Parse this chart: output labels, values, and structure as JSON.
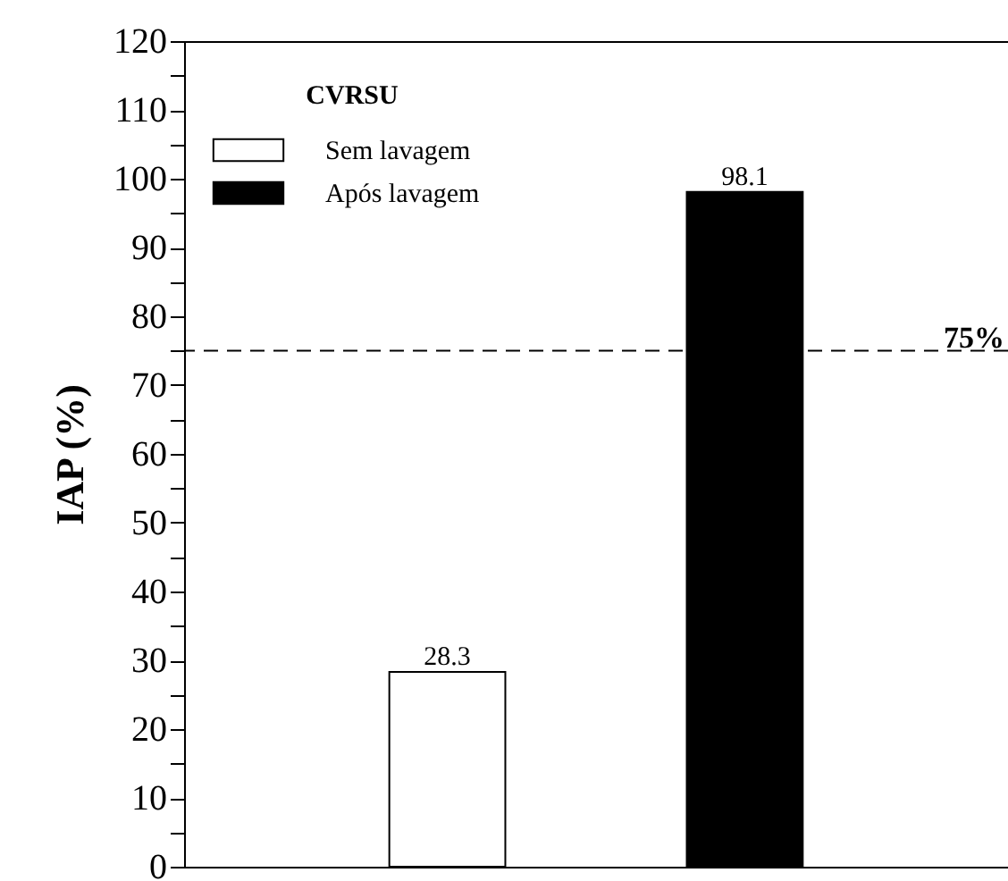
{
  "chart_data": {
    "type": "bar",
    "ylabel": "IAP (%)",
    "legend_title": "CVRSU",
    "categories": [
      null,
      null
    ],
    "series": [
      {
        "name": "Sem lavagem",
        "color": "#ffffff",
        "values": [
          28.3,
          null
        ]
      },
      {
        "name": "Após lavagem",
        "color": "#000000",
        "values": [
          null,
          98.1
        ]
      }
    ],
    "ylim": [
      0,
      120
    ],
    "yticks": [
      0,
      {
        "value": 5,
        "label": null
      },
      10,
      {
        "value": 15,
        "label": null
      },
      20,
      {
        "value": 25,
        "label": null
      },
      30,
      {
        "value": 35,
        "label": null
      },
      40,
      {
        "value": 45,
        "label": null
      },
      50,
      {
        "value": 55,
        "label": null
      },
      60,
      {
        "value": 65,
        "label": null
      },
      70,
      {
        "value": 75,
        "label": null
      },
      80,
      {
        "value": 85,
        "label": null
      },
      90,
      {
        "value": 95,
        "label": null
      },
      100,
      {
        "value": 105,
        "label": null
      },
      110,
      {
        "value": 115,
        "label": null
      },
      120
    ],
    "ref_lines": [
      {
        "axis": "y",
        "value": 75,
        "label": "75%",
        "line_style": "dashed"
      }
    ],
    "data_labels": true,
    "grid": false,
    "legend": "top left"
  }
}
